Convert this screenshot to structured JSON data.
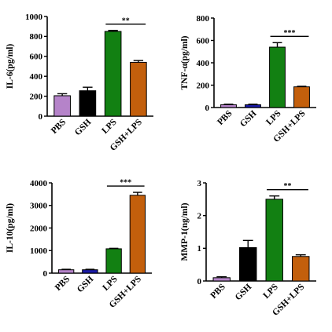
{
  "chart_data": [
    {
      "type": "bar",
      "ylabel": "IL-6(pg/ml)",
      "categories": [
        "PBS",
        "GSH",
        "LPS",
        "GSH+LPS"
      ],
      "values": [
        205,
        255,
        850,
        540
      ],
      "errors": [
        20,
        35,
        10,
        18
      ],
      "colors": [
        "#b583c9",
        "#000000",
        "#128012",
        "#c35f0c"
      ],
      "ylim": [
        0,
        1000
      ],
      "yticks": [
        0,
        200,
        400,
        600,
        800,
        1000
      ],
      "yticklabels": [
        "0",
        "200",
        "400",
        "600",
        "800",
        "1000"
      ],
      "significance": {
        "from": "LPS",
        "to": "GSH+LPS",
        "label": "**"
      }
    },
    {
      "type": "bar",
      "ylabel": "TNF-α(pg/ml)",
      "categories": [
        "PBS",
        "GSH",
        "LPS",
        "GSH+LPS"
      ],
      "values": [
        25,
        25,
        540,
        185
      ],
      "errors": [
        5,
        5,
        40,
        5
      ],
      "colors": [
        "#b583c9",
        "#1a1aa6",
        "#128012",
        "#c35f0c"
      ],
      "ylim": [
        0,
        800
      ],
      "yticks": [
        0,
        200,
        400,
        600,
        800
      ],
      "yticklabels": [
        "0",
        "200",
        "400",
        "600",
        "800"
      ],
      "significance": {
        "from": "LPS",
        "to": "GSH+LPS",
        "label": "***"
      }
    },
    {
      "type": "bar",
      "ylabel": "IL-10(pg/ml)",
      "categories": [
        "PBS",
        "GSH",
        "LPS",
        "GSH+LPS"
      ],
      "values": [
        150,
        150,
        1080,
        3450
      ],
      "errors": [
        20,
        20,
        20,
        130
      ],
      "colors": [
        "#b583c9",
        "#1a1aa6",
        "#128012",
        "#c35f0c"
      ],
      "ylim": [
        0,
        4000
      ],
      "yticks": [
        0,
        1000,
        2000,
        3000,
        4000
      ],
      "yticklabels": [
        "0",
        "1000",
        "2000",
        "3000",
        "4000"
      ],
      "significance": {
        "from": "LPS",
        "to": "GSH+LPS",
        "label": "***"
      }
    },
    {
      "type": "bar",
      "ylabel": "MMP-1(ng/ml)",
      "categories": [
        "PBS",
        "GSH",
        "LPS",
        "GSH+LPS"
      ],
      "values": [
        0.1,
        1.02,
        2.5,
        0.75
      ],
      "errors": [
        0.03,
        0.22,
        0.1,
        0.05
      ],
      "colors": [
        "#b583c9",
        "#000000",
        "#128012",
        "#c35f0c"
      ],
      "ylim": [
        0,
        3
      ],
      "yticks": [
        0,
        1,
        2,
        3
      ],
      "yticklabels": [
        "0",
        "1",
        "2",
        "3"
      ],
      "significance": {
        "from": "LPS",
        "to": "GSH+LPS",
        "label": "**"
      }
    }
  ]
}
